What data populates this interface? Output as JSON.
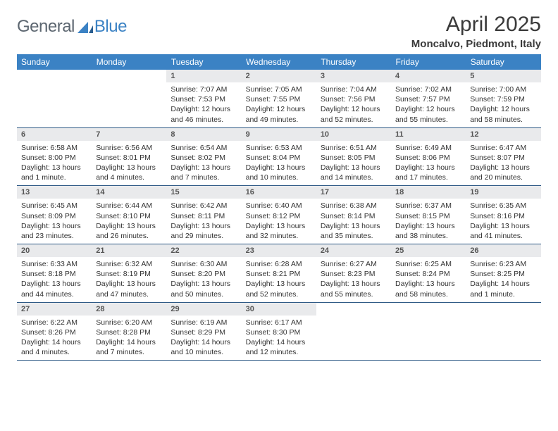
{
  "brand": {
    "left": "General",
    "right": "Blue"
  },
  "title": "April 2025",
  "subtitle": "Moncalvo, Piedmont, Italy",
  "colors": {
    "header_bg": "#3b82c4",
    "header_text": "#ffffff",
    "daynum_bg": "#e9eaec",
    "row_border": "#2f5a86",
    "body_text": "#333333",
    "title_text": "#3a3a3a",
    "logo_gray": "#5c6670",
    "logo_blue": "#3b82c4"
  },
  "typography": {
    "title_fontsize": 30,
    "subtitle_fontsize": 15,
    "header_fontsize": 12,
    "daynum_fontsize": 11,
    "body_fontsize": 10.5
  },
  "weekdays": [
    "Sunday",
    "Monday",
    "Tuesday",
    "Wednesday",
    "Thursday",
    "Friday",
    "Saturday"
  ],
  "weeks": [
    [
      null,
      null,
      {
        "n": "1",
        "sr": "Sunrise: 7:07 AM",
        "ss": "Sunset: 7:53 PM",
        "dl": "Daylight: 12 hours and 46 minutes."
      },
      {
        "n": "2",
        "sr": "Sunrise: 7:05 AM",
        "ss": "Sunset: 7:55 PM",
        "dl": "Daylight: 12 hours and 49 minutes."
      },
      {
        "n": "3",
        "sr": "Sunrise: 7:04 AM",
        "ss": "Sunset: 7:56 PM",
        "dl": "Daylight: 12 hours and 52 minutes."
      },
      {
        "n": "4",
        "sr": "Sunrise: 7:02 AM",
        "ss": "Sunset: 7:57 PM",
        "dl": "Daylight: 12 hours and 55 minutes."
      },
      {
        "n": "5",
        "sr": "Sunrise: 7:00 AM",
        "ss": "Sunset: 7:59 PM",
        "dl": "Daylight: 12 hours and 58 minutes."
      }
    ],
    [
      {
        "n": "6",
        "sr": "Sunrise: 6:58 AM",
        "ss": "Sunset: 8:00 PM",
        "dl": "Daylight: 13 hours and 1 minute."
      },
      {
        "n": "7",
        "sr": "Sunrise: 6:56 AM",
        "ss": "Sunset: 8:01 PM",
        "dl": "Daylight: 13 hours and 4 minutes."
      },
      {
        "n": "8",
        "sr": "Sunrise: 6:54 AM",
        "ss": "Sunset: 8:02 PM",
        "dl": "Daylight: 13 hours and 7 minutes."
      },
      {
        "n": "9",
        "sr": "Sunrise: 6:53 AM",
        "ss": "Sunset: 8:04 PM",
        "dl": "Daylight: 13 hours and 10 minutes."
      },
      {
        "n": "10",
        "sr": "Sunrise: 6:51 AM",
        "ss": "Sunset: 8:05 PM",
        "dl": "Daylight: 13 hours and 14 minutes."
      },
      {
        "n": "11",
        "sr": "Sunrise: 6:49 AM",
        "ss": "Sunset: 8:06 PM",
        "dl": "Daylight: 13 hours and 17 minutes."
      },
      {
        "n": "12",
        "sr": "Sunrise: 6:47 AM",
        "ss": "Sunset: 8:07 PM",
        "dl": "Daylight: 13 hours and 20 minutes."
      }
    ],
    [
      {
        "n": "13",
        "sr": "Sunrise: 6:45 AM",
        "ss": "Sunset: 8:09 PM",
        "dl": "Daylight: 13 hours and 23 minutes."
      },
      {
        "n": "14",
        "sr": "Sunrise: 6:44 AM",
        "ss": "Sunset: 8:10 PM",
        "dl": "Daylight: 13 hours and 26 minutes."
      },
      {
        "n": "15",
        "sr": "Sunrise: 6:42 AM",
        "ss": "Sunset: 8:11 PM",
        "dl": "Daylight: 13 hours and 29 minutes."
      },
      {
        "n": "16",
        "sr": "Sunrise: 6:40 AM",
        "ss": "Sunset: 8:12 PM",
        "dl": "Daylight: 13 hours and 32 minutes."
      },
      {
        "n": "17",
        "sr": "Sunrise: 6:38 AM",
        "ss": "Sunset: 8:14 PM",
        "dl": "Daylight: 13 hours and 35 minutes."
      },
      {
        "n": "18",
        "sr": "Sunrise: 6:37 AM",
        "ss": "Sunset: 8:15 PM",
        "dl": "Daylight: 13 hours and 38 minutes."
      },
      {
        "n": "19",
        "sr": "Sunrise: 6:35 AM",
        "ss": "Sunset: 8:16 PM",
        "dl": "Daylight: 13 hours and 41 minutes."
      }
    ],
    [
      {
        "n": "20",
        "sr": "Sunrise: 6:33 AM",
        "ss": "Sunset: 8:18 PM",
        "dl": "Daylight: 13 hours and 44 minutes."
      },
      {
        "n": "21",
        "sr": "Sunrise: 6:32 AM",
        "ss": "Sunset: 8:19 PM",
        "dl": "Daylight: 13 hours and 47 minutes."
      },
      {
        "n": "22",
        "sr": "Sunrise: 6:30 AM",
        "ss": "Sunset: 8:20 PM",
        "dl": "Daylight: 13 hours and 50 minutes."
      },
      {
        "n": "23",
        "sr": "Sunrise: 6:28 AM",
        "ss": "Sunset: 8:21 PM",
        "dl": "Daylight: 13 hours and 52 minutes."
      },
      {
        "n": "24",
        "sr": "Sunrise: 6:27 AM",
        "ss": "Sunset: 8:23 PM",
        "dl": "Daylight: 13 hours and 55 minutes."
      },
      {
        "n": "25",
        "sr": "Sunrise: 6:25 AM",
        "ss": "Sunset: 8:24 PM",
        "dl": "Daylight: 13 hours and 58 minutes."
      },
      {
        "n": "26",
        "sr": "Sunrise: 6:23 AM",
        "ss": "Sunset: 8:25 PM",
        "dl": "Daylight: 14 hours and 1 minute."
      }
    ],
    [
      {
        "n": "27",
        "sr": "Sunrise: 6:22 AM",
        "ss": "Sunset: 8:26 PM",
        "dl": "Daylight: 14 hours and 4 minutes."
      },
      {
        "n": "28",
        "sr": "Sunrise: 6:20 AM",
        "ss": "Sunset: 8:28 PM",
        "dl": "Daylight: 14 hours and 7 minutes."
      },
      {
        "n": "29",
        "sr": "Sunrise: 6:19 AM",
        "ss": "Sunset: 8:29 PM",
        "dl": "Daylight: 14 hours and 10 minutes."
      },
      {
        "n": "30",
        "sr": "Sunrise: 6:17 AM",
        "ss": "Sunset: 8:30 PM",
        "dl": "Daylight: 14 hours and 12 minutes."
      },
      null,
      null,
      null
    ]
  ]
}
